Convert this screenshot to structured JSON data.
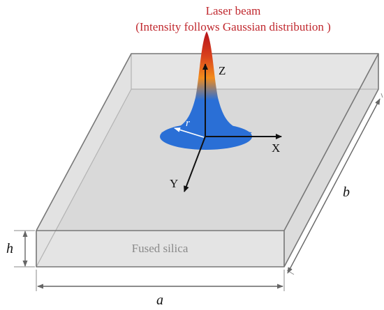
{
  "beam": {
    "title": "Laser beam",
    "subtitle": "(Intensity follows Gaussian distribution )",
    "radius_label": "r"
  },
  "axes": {
    "x_label": "X",
    "y_label": "Y",
    "z_label": "Z"
  },
  "slab": {
    "material_label": "Fused silica",
    "width_label": "a",
    "depth_label": "b",
    "height_label": "h"
  },
  "colors": {
    "title": "#c0282e",
    "beam_top": "#b5121b",
    "beam_mid": "#f28c1c",
    "beam_base": "#2a6fd6",
    "slab_top": "#d9d9d9",
    "slab_front": "#e4e4e4",
    "edge": "#777777"
  }
}
